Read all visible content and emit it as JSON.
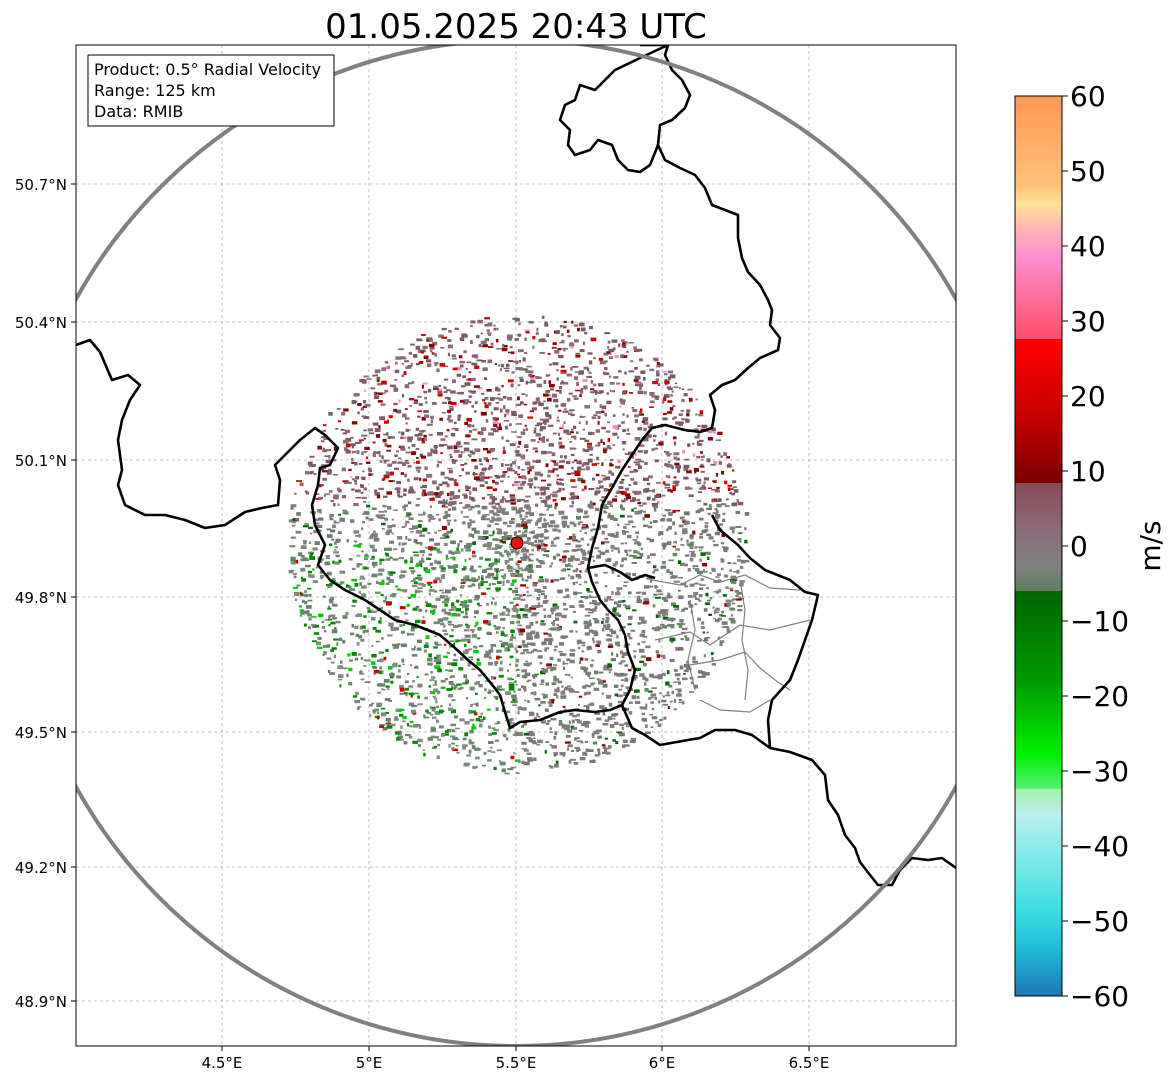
{
  "title": "01.05.2025 20:43 UTC",
  "info_box": {
    "product": "Product: 0.5° Radial Velocity",
    "range": "Range: 125 km",
    "data": "Data: RMIB"
  },
  "lat_ticks": [
    "50.7°N",
    "50.4°N",
    "50.1°N",
    "49.8°N",
    "49.5°N",
    "49.2°N",
    "48.9°N"
  ],
  "lon_ticks": [
    "4.5°E",
    "5°E",
    "5.5°E",
    "6°E",
    "6.5°E"
  ],
  "colorbar": {
    "label": "m/s",
    "ticks": [
      "60",
      "50",
      "40",
      "30",
      "20",
      "10",
      "0",
      "−10",
      "−20",
      "−30",
      "−40",
      "−50",
      "−60"
    ],
    "range": [
      -60,
      60
    ],
    "colors": {
      "high": "#ff9955",
      "pink": "#ff88cc",
      "red": "#ff0000",
      "darkred": "#660000",
      "neutral": "#808080",
      "darkgreen": "#006600",
      "green": "#00ee00",
      "cyan": "#30e0e0",
      "low": "#1f77b4"
    }
  },
  "map": {
    "radar_site": {
      "lon": 5.505,
      "lat": 49.914
    },
    "range_ring_km": 125,
    "lon_range": [
      4.0,
      7.0
    ],
    "lat_range": [
      48.8,
      51.0
    ]
  }
}
